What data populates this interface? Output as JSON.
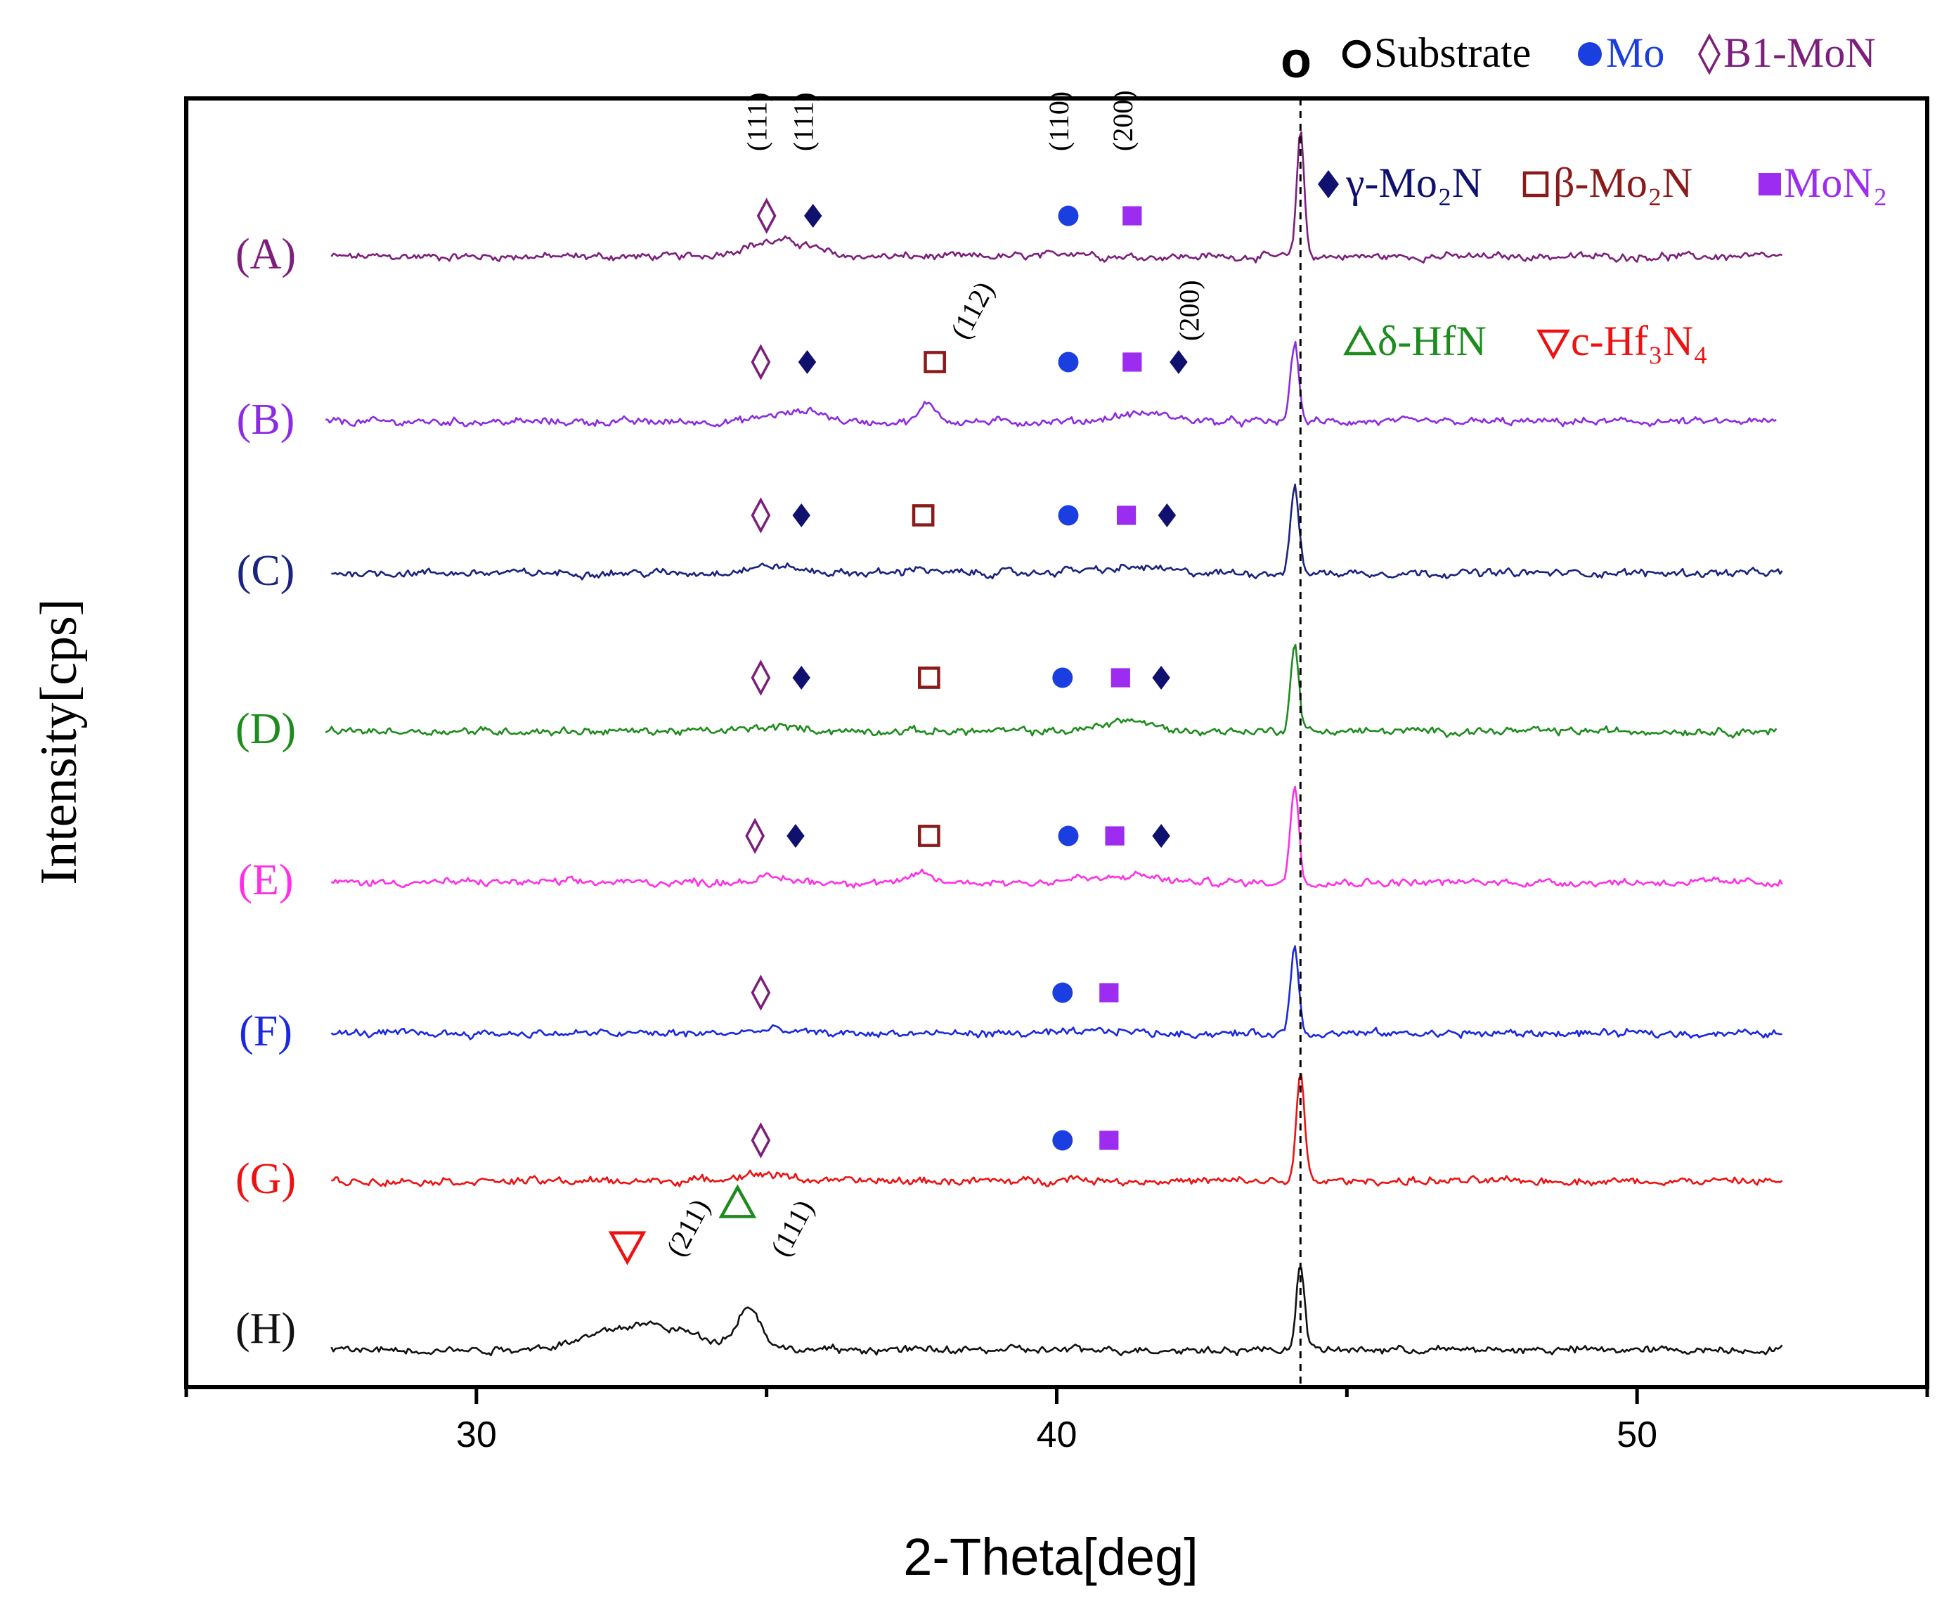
{
  "chart_data": {
    "type": "line",
    "title": "",
    "xlabel": "2-Theta[deg]",
    "ylabel": "Intensity[cps]",
    "xlim": [
      25,
      55
    ],
    "xticks": [
      30,
      40,
      50
    ],
    "grid": false,
    "series": [
      {
        "name": "(A)",
        "color": "#7b1f7b",
        "baseline": 0.8,
        "x_range": [
          27.5,
          52.5
        ],
        "peaks": [
          {
            "x": 35.0,
            "height": 0.9,
            "width": 0.7
          },
          {
            "x": 35.6,
            "height": 0.5,
            "width": 0.5
          },
          {
            "x": 40.3,
            "height": 0.35,
            "width": 0.35
          },
          {
            "x": 44.2,
            "height": 9.0,
            "width": 0.09
          }
        ]
      },
      {
        "name": "(B)",
        "color": "#8b2be2",
        "baseline": 0.8,
        "x_range": [
          27.4,
          52.4
        ],
        "peaks": [
          {
            "x": 35.2,
            "height": 0.5,
            "width": 0.45
          },
          {
            "x": 35.8,
            "height": 0.7,
            "width": 0.35
          },
          {
            "x": 37.8,
            "height": 1.3,
            "width": 0.2
          },
          {
            "x": 41.5,
            "height": 0.6,
            "width": 0.7
          },
          {
            "x": 44.1,
            "height": 5.6,
            "width": 0.1
          }
        ]
      },
      {
        "name": "(C)",
        "color": "#1a237e",
        "baseline": 0.8,
        "x_range": [
          27.5,
          52.5
        ],
        "peaks": [
          {
            "x": 35.1,
            "height": 0.5,
            "width": 0.6
          },
          {
            "x": 37.6,
            "height": 0.45,
            "width": 0.2
          },
          {
            "x": 40.3,
            "height": 0.2,
            "width": 0.4
          },
          {
            "x": 41.4,
            "height": 0.4,
            "width": 0.6
          },
          {
            "x": 44.1,
            "height": 6.2,
            "width": 0.1
          }
        ]
      },
      {
        "name": "(D)",
        "color": "#1e8b1e",
        "baseline": 0.8,
        "x_range": [
          27.4,
          52.4
        ],
        "peaks": [
          {
            "x": 35.2,
            "height": 0.3,
            "width": 0.6
          },
          {
            "x": 41.2,
            "height": 0.8,
            "width": 0.55
          },
          {
            "x": 44.1,
            "height": 6.2,
            "width": 0.1
          }
        ]
      },
      {
        "name": "(E)",
        "color": "#ff2fe6",
        "baseline": 0.8,
        "x_range": [
          27.5,
          52.5
        ],
        "peaks": [
          {
            "x": 35.1,
            "height": 0.3,
            "width": 0.5
          },
          {
            "x": 37.7,
            "height": 0.7,
            "width": 0.2
          },
          {
            "x": 40.4,
            "height": 0.3,
            "width": 0.35
          },
          {
            "x": 41.4,
            "height": 0.5,
            "width": 0.5
          },
          {
            "x": 44.1,
            "height": 7.0,
            "width": 0.1
          }
        ]
      },
      {
        "name": "(F)",
        "color": "#1a28e0",
        "baseline": 0.8,
        "x_range": [
          27.5,
          52.5
        ],
        "peaks": [
          {
            "x": 35.1,
            "height": 0.25,
            "width": 0.5
          },
          {
            "x": 41.0,
            "height": 0.2,
            "width": 0.5
          },
          {
            "x": 44.1,
            "height": 6.2,
            "width": 0.1
          }
        ]
      },
      {
        "name": "(G)",
        "color": "#ee1111",
        "baseline": 0.8,
        "x_range": [
          27.5,
          52.5
        ],
        "peaks": [
          {
            "x": 34.9,
            "height": 0.5,
            "width": 0.7
          },
          {
            "x": 40.3,
            "height": 0.2,
            "width": 0.4
          },
          {
            "x": 44.2,
            "height": 7.5,
            "width": 0.1
          }
        ]
      },
      {
        "name": "(H)",
        "color": "#111111",
        "baseline": 0.8,
        "x_range": [
          27.5,
          52.5
        ],
        "peaks": [
          {
            "x": 32.9,
            "height": 1.8,
            "width": 1.2
          },
          {
            "x": 34.7,
            "height": 2.8,
            "width": 0.3
          },
          {
            "x": 44.2,
            "height": 6.2,
            "width": 0.1
          }
        ]
      }
    ],
    "reference_line": {
      "x": 44.2,
      "style": "dashed"
    },
    "legend": [
      {
        "symbol": "circle-open",
        "label": "Substrate",
        "color": "#000000"
      },
      {
        "symbol": "circle",
        "label": "Mo",
        "color": "#1a3ee0"
      },
      {
        "symbol": "diamond-open",
        "label": "B1-MoN",
        "color": "#7b1f7b"
      },
      {
        "symbol": "diamond",
        "label": "γ-Mo₂N",
        "color": "#10106e"
      },
      {
        "symbol": "square-open",
        "label": "β-Mo₂N",
        "color": "#8b1a1a"
      },
      {
        "symbol": "square",
        "label": "MoN₂",
        "color": "#9b2cf0"
      },
      {
        "symbol": "triangle-up-open",
        "label": "δ-HfN",
        "color": "#1e8b1e"
      },
      {
        "symbol": "triangle-down-open",
        "label": "c-Hf₃N₄",
        "color": "#ee1111"
      }
    ],
    "substrate_marker_label": "o",
    "annotations": [
      {
        "text": "(111)",
        "x": 35.0,
        "series": "(A)"
      },
      {
        "text": "(111)",
        "x": 35.8,
        "series": "(A)"
      },
      {
        "text": "(110)",
        "x": 40.2,
        "series": "(A)"
      },
      {
        "text": "(200)",
        "x": 41.3,
        "series": "(A)"
      },
      {
        "text": "(112)",
        "x": 38.3,
        "series": "(B)"
      },
      {
        "text": "(200)",
        "x": 42.3,
        "series": "(B)"
      },
      {
        "text": "(211)",
        "x": 33.4,
        "series": "(H)"
      },
      {
        "text": "(111)",
        "x": 35.2,
        "series": "(H)"
      }
    ],
    "markers": [
      {
        "series": "(A)",
        "items": [
          [
            "diamond-open",
            35.0
          ],
          [
            "diamond",
            35.8
          ],
          [
            "circle",
            40.2
          ],
          [
            "square",
            41.3
          ]
        ]
      },
      {
        "series": "(B)",
        "items": [
          [
            "diamond-open",
            34.9
          ],
          [
            "diamond",
            35.7
          ],
          [
            "square-open",
            37.9
          ],
          [
            "circle",
            40.2
          ],
          [
            "square",
            41.3
          ],
          [
            "diamond",
            42.1
          ]
        ]
      },
      {
        "series": "(C)",
        "items": [
          [
            "diamond-open",
            34.9
          ],
          [
            "diamond",
            35.6
          ],
          [
            "square-open",
            37.7
          ],
          [
            "circle",
            40.2
          ],
          [
            "square",
            41.2
          ],
          [
            "diamond",
            41.9
          ]
        ]
      },
      {
        "series": "(D)",
        "items": [
          [
            "diamond-open",
            34.9
          ],
          [
            "diamond",
            35.6
          ],
          [
            "square-open",
            37.8
          ],
          [
            "circle",
            40.1
          ],
          [
            "square",
            41.1
          ],
          [
            "diamond",
            41.8
          ]
        ]
      },
      {
        "series": "(E)",
        "items": [
          [
            "diamond-open",
            34.8
          ],
          [
            "diamond",
            35.5
          ],
          [
            "square-open",
            37.8
          ],
          [
            "circle",
            40.2
          ],
          [
            "square",
            41.0
          ],
          [
            "diamond",
            41.8
          ]
        ]
      },
      {
        "series": "(F)",
        "items": [
          [
            "diamond-open",
            34.9
          ],
          [
            "circle",
            40.1
          ],
          [
            "square",
            40.9
          ]
        ]
      },
      {
        "series": "(G)",
        "items": [
          [
            "diamond-open",
            34.9
          ],
          [
            "circle",
            40.1
          ],
          [
            "square",
            40.9
          ]
        ]
      },
      {
        "series": "(H)",
        "items": [
          [
            "triangle-down-open",
            32.6
          ],
          [
            "triangle-up-open",
            34.5
          ]
        ]
      }
    ]
  }
}
